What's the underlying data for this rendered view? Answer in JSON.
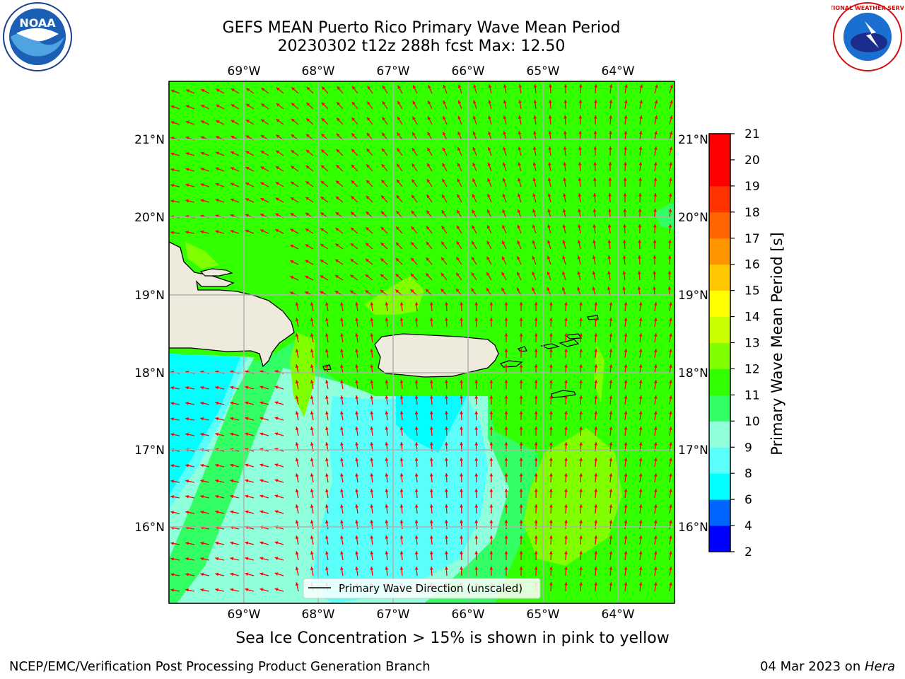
{
  "title_line1": "GEFS MEAN Puerto Rico Primary Wave Mean Period",
  "title_line2": "20230302 t12z 288h fcst   Max: 12.50",
  "lon_labels": [
    "69°W",
    "68°W",
    "67°W",
    "66°W",
    "65°W",
    "64°W"
  ],
  "lat_labels": [
    "21°N",
    "20°N",
    "19°N",
    "18°N",
    "17°N",
    "16°N"
  ],
  "colorbar": {
    "label": "Primary Wave Mean Period [s]",
    "ticks": [
      "2",
      "4",
      "6",
      "8",
      "9",
      "10",
      "11",
      "12",
      "13",
      "14",
      "15",
      "16",
      "17",
      "18",
      "19",
      "20",
      "21"
    ],
    "colors": [
      "#0000ff",
      "#0064ff",
      "#00ffff",
      "#5afffa",
      "#90ffdc",
      "#32ff64",
      "#32ff00",
      "#80ff00",
      "#c8ff00",
      "#ffff00",
      "#ffc800",
      "#ff9600",
      "#ff6400",
      "#ff3200",
      "#ff0000",
      "#ff0000"
    ]
  },
  "legend_text": "Primary Wave Direction (unscaled)",
  "subnote": "Sea Ice Concentration > 15% is shown in pink to yellow",
  "footer_left": "NCEP/EMC/Verification Post Processing Product Generation Branch",
  "footer_right_prefix": "04 Mar 2023 on ",
  "footer_right_host": "Hera",
  "logos": {
    "noaa_text": "NOAA",
    "nws_text": "NATIONAL WEATHER SERVICE"
  },
  "colors": {
    "base_field": "#32ff00",
    "field_10_11": "#32ff64",
    "field_9_10": "#90ffdc",
    "field_8_9": "#5afffa",
    "field_6_8": "#00ffff",
    "field_12_13": "#80ff00",
    "land": "#efebdc",
    "arrows": "#ff0000",
    "grid": "#b0b0b0"
  }
}
